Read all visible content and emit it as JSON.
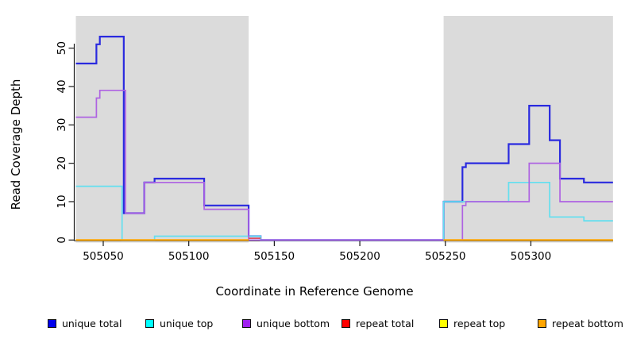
{
  "chart_data": {
    "type": "line",
    "subtype": "step-coverage",
    "title": "",
    "xlabel": "Coordinate in Reference Genome",
    "ylabel": "Read Coverage Depth",
    "x_ticks": [
      505050,
      505100,
      505150,
      505200,
      505250,
      505300
    ],
    "y_ticks": [
      0,
      10,
      20,
      30,
      40,
      50
    ],
    "xlim": [
      505034,
      505348
    ],
    "ylim": [
      0,
      58
    ],
    "grid": false,
    "legend_position": "bottom",
    "shaded_region_color": "#DBDBDB",
    "shaded_regions": [
      {
        "name": "left-shaded-region",
        "from": 505034,
        "to": 505135
      },
      {
        "name": "right-shaded-region",
        "from": 505249,
        "to": 505348
      }
    ],
    "series": [
      {
        "name": "unique total",
        "color": "#2A2ADF",
        "legend_color": "#0000EE",
        "line_width": 2.2,
        "steps": [
          [
            505034,
            46
          ],
          [
            505046,
            51
          ],
          [
            505048,
            53
          ],
          [
            505062,
            7
          ],
          [
            505074,
            15
          ],
          [
            505080,
            16
          ],
          [
            505109,
            9
          ],
          [
            505135,
            1
          ],
          [
            505142,
            0
          ],
          [
            505249,
            10
          ],
          [
            505260,
            19
          ],
          [
            505262,
            20
          ],
          [
            505287,
            25
          ],
          [
            505299,
            35
          ],
          [
            505311,
            26
          ],
          [
            505317,
            16
          ],
          [
            505331,
            15
          ],
          [
            505348,
            null
          ]
        ]
      },
      {
        "name": "unique top",
        "color": "#63DFEF",
        "legend_color": "#00FFFF",
        "line_width": 1.7,
        "steps": [
          [
            505034,
            14
          ],
          [
            505061,
            0
          ],
          [
            505080,
            1
          ],
          [
            505142,
            0
          ],
          [
            505249,
            10
          ],
          [
            505287,
            15
          ],
          [
            505311,
            6
          ],
          [
            505331,
            5
          ],
          [
            505348,
            null
          ]
        ]
      },
      {
        "name": "unique bottom",
        "color": "#AE63E2",
        "legend_color": "#A020F0",
        "line_width": 1.7,
        "steps": [
          [
            505034,
            32
          ],
          [
            505046,
            37
          ],
          [
            505048,
            39
          ],
          [
            505063,
            7
          ],
          [
            505074,
            15
          ],
          [
            505109,
            8
          ],
          [
            505135,
            0
          ],
          [
            505260,
            9
          ],
          [
            505262,
            10
          ],
          [
            505299,
            20
          ],
          [
            505317,
            10
          ],
          [
            505348,
            null
          ]
        ]
      },
      {
        "name": "repeat total",
        "color": "#DC4B5C",
        "legend_color": "#FF0000",
        "line_width": 1.7,
        "steps": [
          [
            505135,
            0.45
          ],
          [
            505142,
            null
          ]
        ]
      },
      {
        "name": "repeat top",
        "color": "#FFFF00",
        "legend_color": "#FFFF00",
        "line_width": 1.7,
        "steps": [
          [
            505034,
            0
          ],
          [
            505135,
            null
          ],
          [
            505249,
            0
          ],
          [
            505348,
            null
          ]
        ]
      },
      {
        "name": "repeat bottom",
        "color": "#FFA500",
        "legend_color": "#FFA500",
        "line_width": 2,
        "steps": [
          [
            505034,
            0
          ],
          [
            505135,
            null
          ],
          [
            505249,
            0
          ],
          [
            505348,
            null
          ]
        ]
      }
    ]
  }
}
